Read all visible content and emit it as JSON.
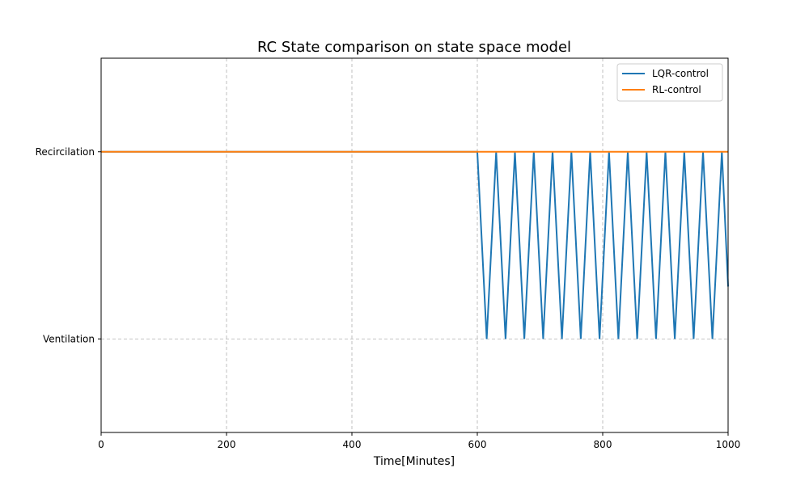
{
  "chart_data": {
    "type": "line",
    "title": "RC State comparison on state space model",
    "xlabel": "Time[Minutes]",
    "ylabel": "",
    "xlim": [
      0,
      1000
    ],
    "ylim": [
      -0.5,
      1.5
    ],
    "x_ticks": [
      0,
      200,
      400,
      600,
      800,
      1000
    ],
    "x_tick_labels": [
      "0",
      "200",
      "400",
      "600",
      "800",
      "1000"
    ],
    "y_ticks": [
      0,
      1
    ],
    "y_tick_labels": [
      "Ventilation",
      "Recircilation"
    ],
    "grid": true,
    "legend_position": "top-right",
    "series": [
      {
        "name": "LQR-control",
        "color": "#1f77b4",
        "x": [
          0,
          600,
          615,
          630,
          645,
          660,
          675,
          690,
          705,
          720,
          735,
          750,
          765,
          780,
          795,
          810,
          825,
          840,
          855,
          870,
          885,
          900,
          915,
          930,
          945,
          960,
          975,
          990,
          1000
        ],
        "y": [
          1,
          1,
          0,
          1,
          0,
          1,
          0,
          1,
          0,
          1,
          0,
          1,
          0,
          1,
          0,
          1,
          0,
          1,
          0,
          1,
          0,
          1,
          0,
          1,
          0,
          1,
          0,
          1,
          0.28
        ]
      },
      {
        "name": "RL-control",
        "color": "#ff7f0e",
        "x": [
          0,
          1000
        ],
        "y": [
          1,
          1
        ]
      }
    ]
  }
}
